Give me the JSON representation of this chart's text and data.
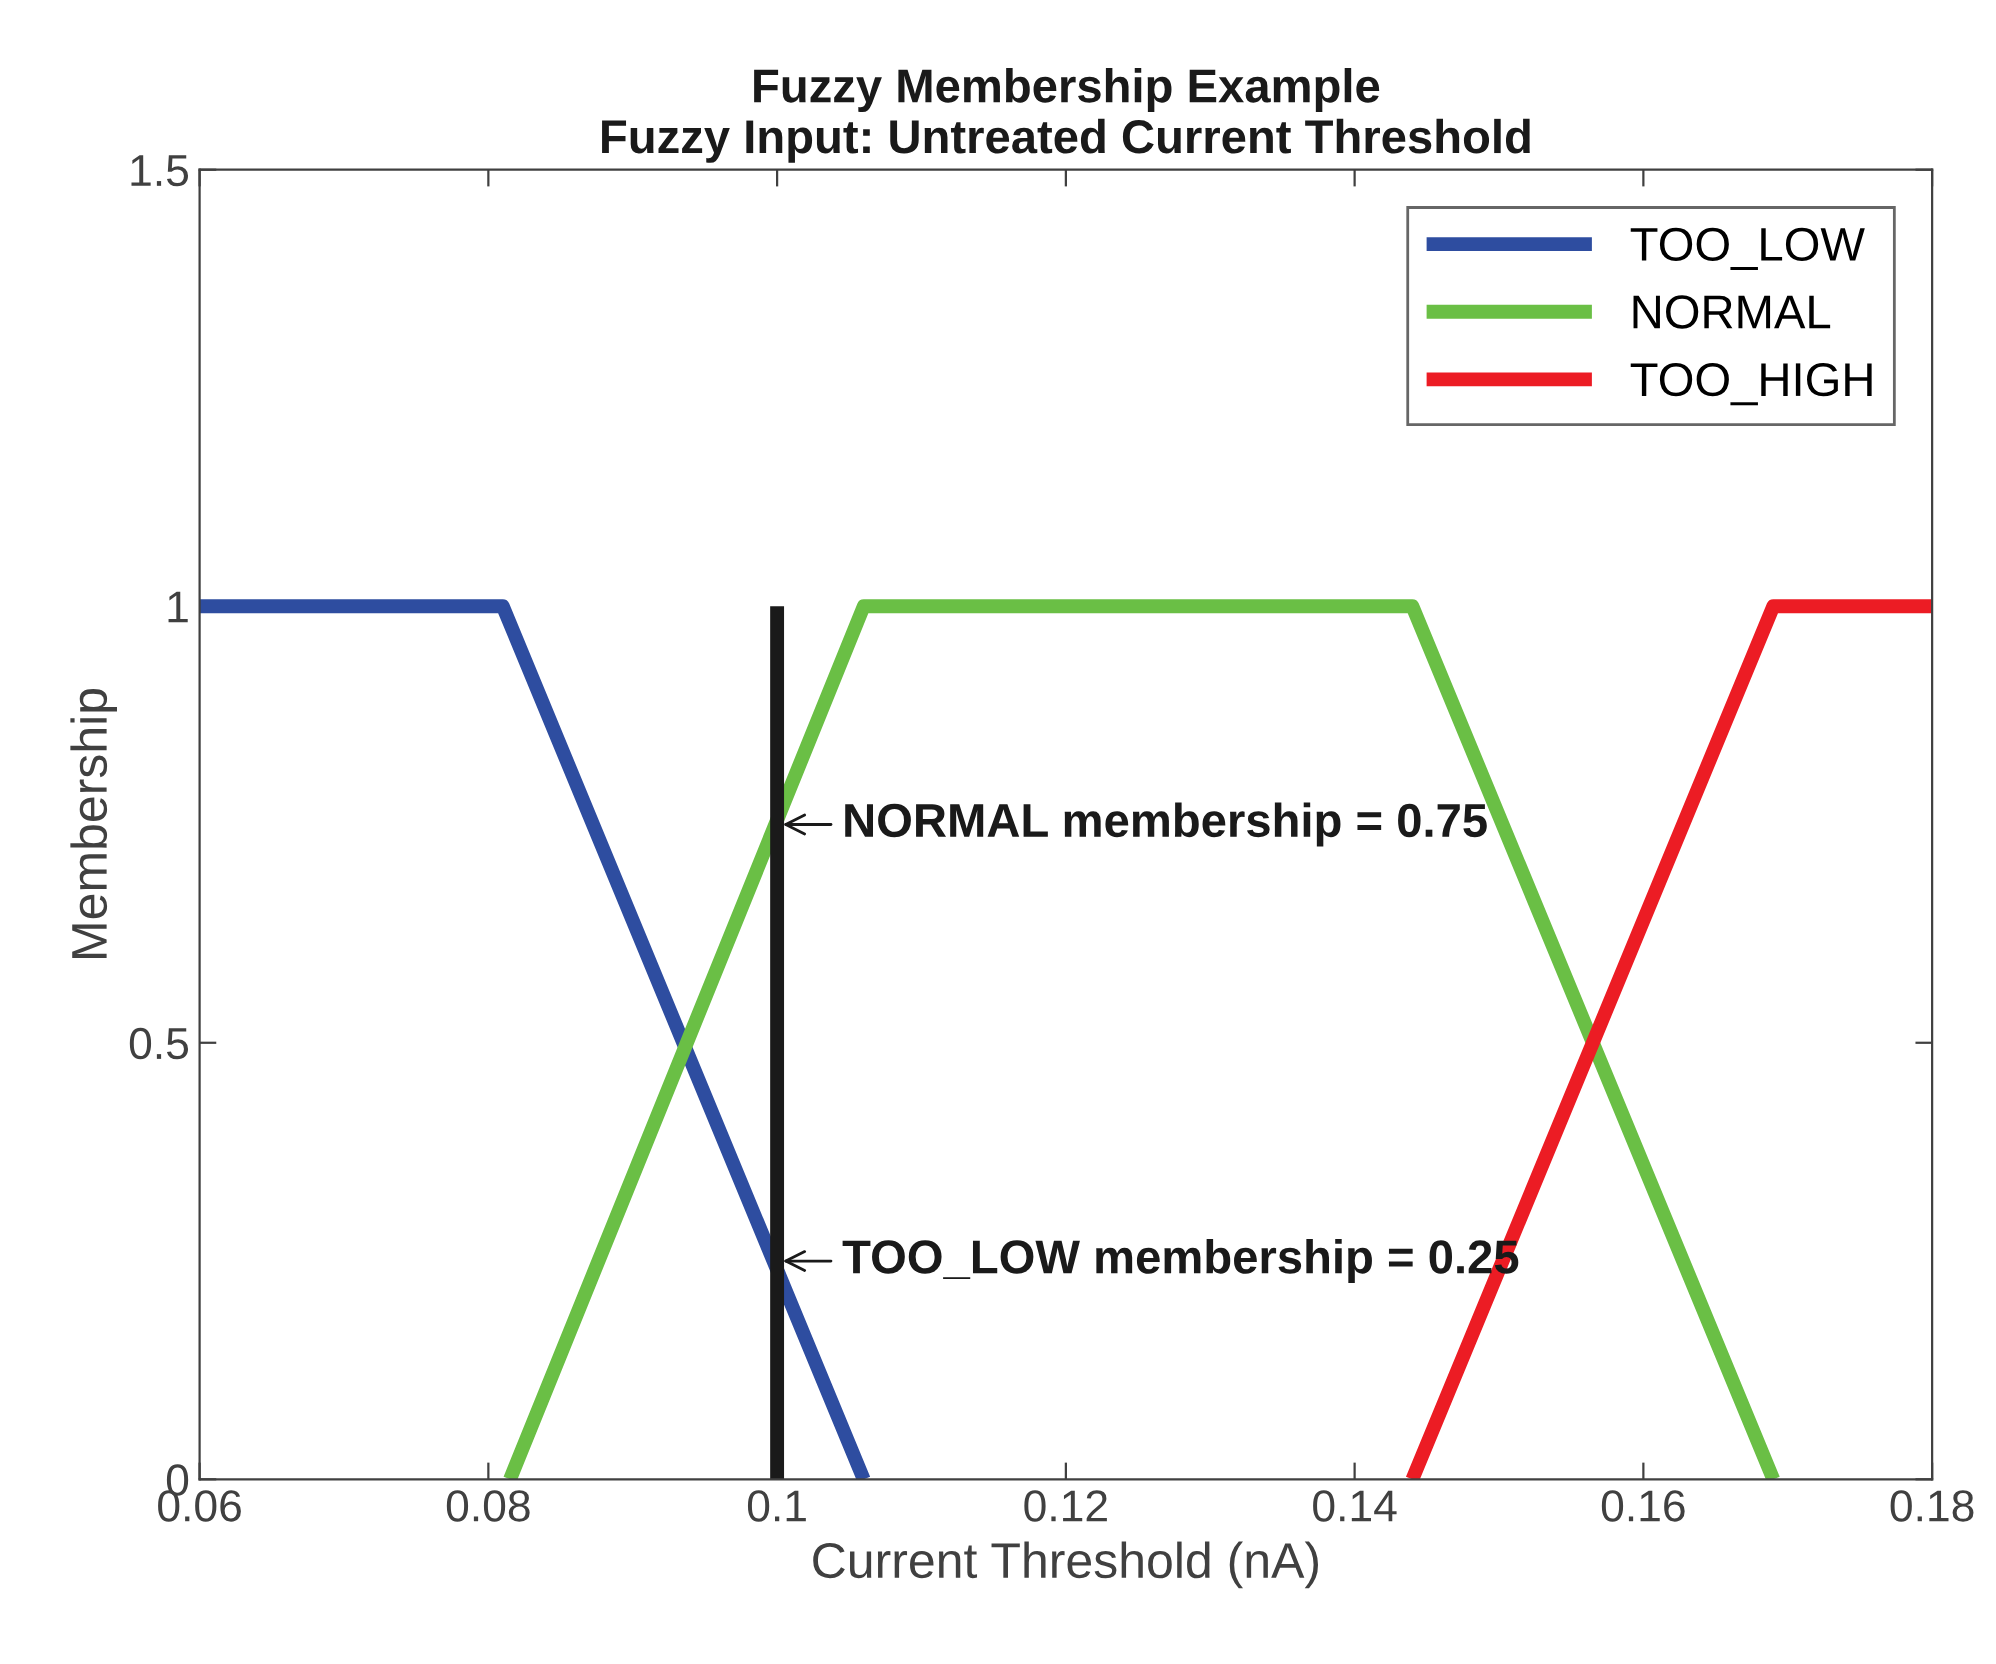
{
  "chart_data": {
    "type": "line",
    "title": "Fuzzy Membership Example\nFuzzy Input: Untreated Current Threshold",
    "xlabel": "Current Threshold (nA)",
    "ylabel": "Membership",
    "series": [
      {
        "name": "TOO_LOW",
        "color": "#2e4da0",
        "x": [
          0.06,
          0.081,
          0.106
        ],
        "values": [
          1,
          1,
          0
        ]
      },
      {
        "name": "NORMAL",
        "color": "#6abf45",
        "x": [
          0.0815,
          0.106,
          0.144,
          0.169
        ],
        "values": [
          0,
          1,
          1,
          0
        ]
      },
      {
        "name": "TOO_HIGH",
        "color": "#ec1c24",
        "x": [
          0.144,
          0.169,
          0.18
        ],
        "values": [
          0,
          1,
          1
        ]
      },
      {
        "color": "#1a1a1a",
        "x": [
          0.1,
          0.1
        ],
        "values": [
          0,
          1
        ]
      }
    ],
    "annotations": [
      {
        "text": "NORMAL membership = 0.75",
        "x": 0.1,
        "y": 0.75
      },
      {
        "text": "TOO_LOW membership = 0.25",
        "x": 0.1,
        "y": 0.25
      }
    ],
    "xlim": [
      0.06,
      0.18
    ],
    "xticks": [
      0.06,
      0.08,
      0.1,
      0.12,
      0.14,
      0.16,
      0.18
    ],
    "ylim": [
      0,
      1.5
    ],
    "yticks": [
      0,
      0.5,
      1,
      1.5
    ],
    "grid": false,
    "legend": "top right",
    "line_style": "solid",
    "marker": "none"
  }
}
